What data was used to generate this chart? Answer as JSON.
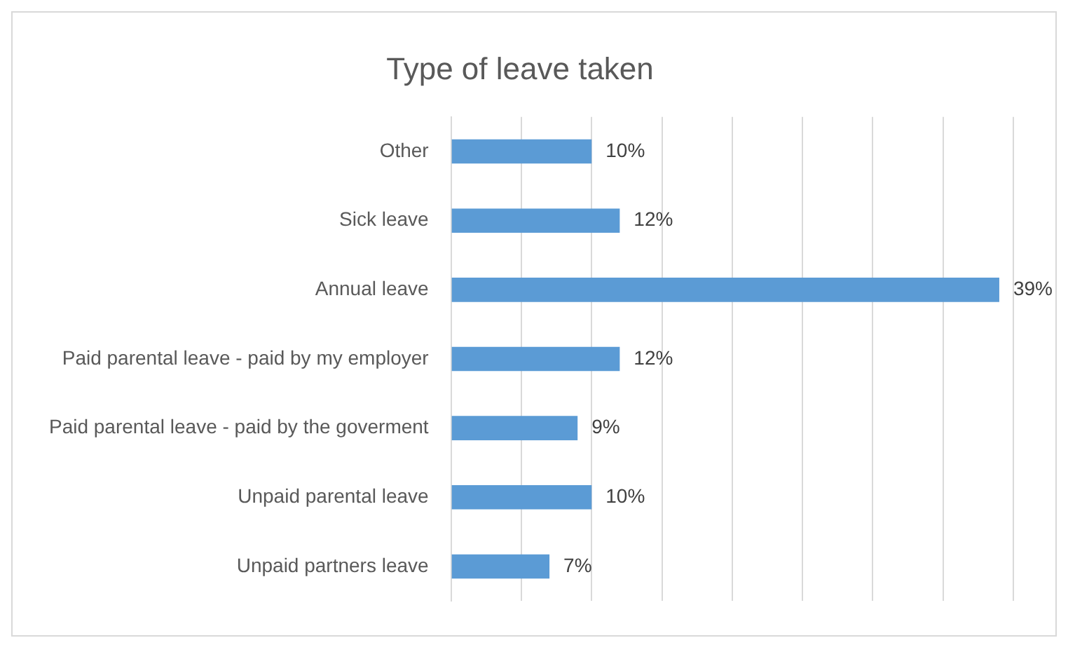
{
  "chart_data": {
    "type": "bar",
    "orientation": "horizontal",
    "title": "Type of leave taken",
    "categories": [
      "Other",
      "Sick leave",
      "Annual leave",
      "Paid parental leave - paid by my employer",
      "Paid parental leave - paid by the goverment",
      "Unpaid parental leave",
      "Unpaid partners leave"
    ],
    "values": [
      10,
      12,
      39,
      12,
      9,
      10,
      7
    ],
    "value_labels": [
      "10%",
      "12%",
      "39%",
      "12%",
      "9%",
      "10%",
      "7%"
    ],
    "color": "#5b9bd5",
    "tick_labels": "y",
    "grid": "x",
    "legend": false
  }
}
